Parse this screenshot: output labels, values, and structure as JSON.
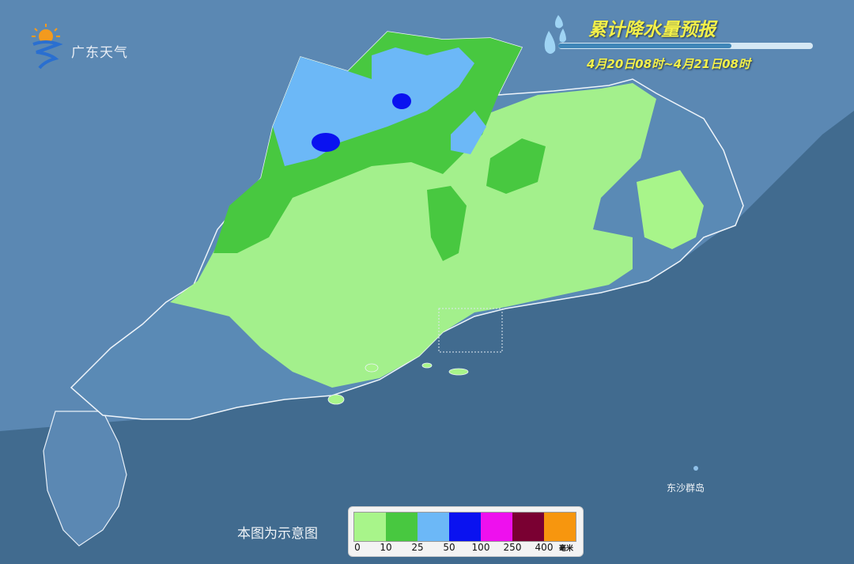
{
  "header": {
    "logo_text": "广东天气",
    "title": "累计降水量预报",
    "date_range": "4月20日08时~4月21日08时",
    "time_bar_progress": 0.68
  },
  "map": {
    "note": "本图为示意图",
    "island_label": "东沙群岛",
    "colors": {
      "sea": "#416b8f",
      "land": "#5b88b3",
      "province": "#4f7aa3"
    }
  },
  "legend": {
    "unit": "毫米",
    "ticks": [
      "0",
      "10",
      "25",
      "50",
      "100",
      "250",
      "400"
    ],
    "colors": [
      "#a8f58a",
      "#48c840",
      "#6cb8f7",
      "#0a12f0",
      "#ee10ee",
      "#7a0032",
      "#f7960e"
    ]
  }
}
